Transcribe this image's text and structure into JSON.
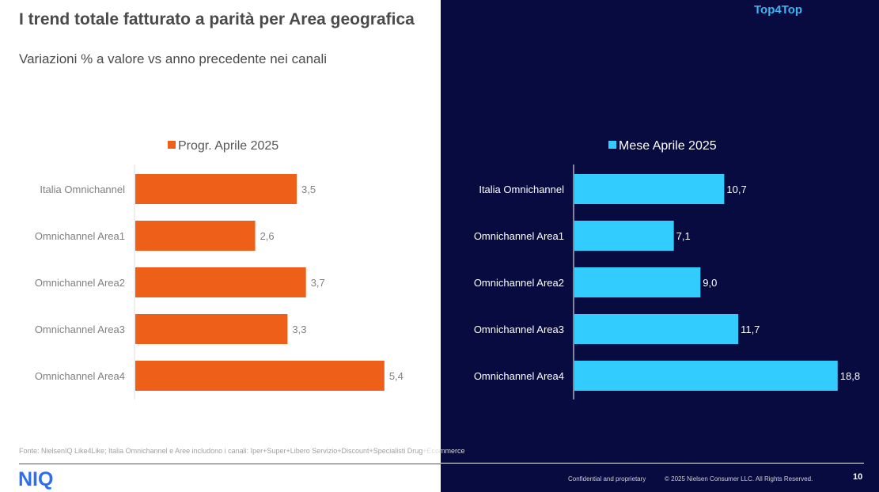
{
  "header": {
    "title": "I trend totale fatturato a parità per Area geografica",
    "subtitle": "Variazioni % a valore vs anno precedente nei canali",
    "brand_tag": "Top4Top"
  },
  "colors": {
    "left_bar": "#ee5f1a",
    "right_bar": "#33ccff",
    "right_background": "#070b3f"
  },
  "chart_data": [
    {
      "type": "bar",
      "orientation": "horizontal",
      "legend": "Progr. Aprile 2025",
      "legend_position": "top-center",
      "categories": [
        "Italia Omnichannel",
        "Omnichannel Area1",
        "Omnichannel Area2",
        "Omnichannel Area3",
        "Omnichannel Area4"
      ],
      "values": [
        3.5,
        2.6,
        3.7,
        3.3,
        5.4
      ],
      "labels": [
        "3,5",
        "2,6",
        "3,7",
        "3,3",
        "5,4"
      ],
      "xlim": [
        0,
        6
      ],
      "grid": false
    },
    {
      "type": "bar",
      "orientation": "horizontal",
      "legend": "Mese Aprile 2025",
      "legend_position": "top-center",
      "categories": [
        "Italia Omnichannel",
        "Omnichannel Area1",
        "Omnichannel Area2",
        "Omnichannel Area3",
        "Omnichannel Area4"
      ],
      "values": [
        10.7,
        7.1,
        9.0,
        11.7,
        18.8
      ],
      "labels": [
        "10,7",
        "7,1",
        "9,0",
        "11,7",
        "18,8"
      ],
      "xlim": [
        0,
        18.8
      ],
      "grid": false
    }
  ],
  "footer": {
    "source_left": "Fonte: NielsenIQ Like4Like; Italia Omnichannel e Aree includono i canali: Iper+Super+Libero Servizio+Discount+Specialisti Drug",
    "source_right": "+Ecommerce",
    "logo": "NIQ",
    "confidential": "Confidential and proprietary",
    "copyright": "© 2025 Nielsen Consumer LLC. All Rights Reserved.",
    "page_number": "10"
  }
}
